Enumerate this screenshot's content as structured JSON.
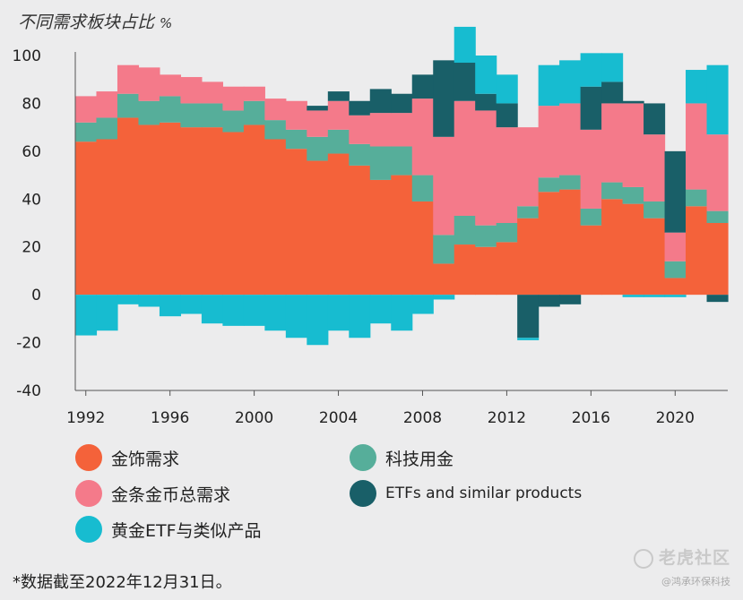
{
  "title": "不同需求板块占比",
  "title_unit": "%",
  "legend": [
    {
      "label": "金饰需求",
      "color": "#f4623a"
    },
    {
      "label": "科技用金",
      "color": "#56ae9a"
    },
    {
      "label": "金条金币总需求",
      "color": "#f47a8a"
    },
    {
      "label": "ETFs and similar products",
      "color": "#195f68"
    },
    {
      "label": "黄金ETF与类似产品",
      "color": "#17bcd0"
    }
  ],
  "footnote": "*数据截至2022年12月31日。",
  "watermark": {
    "main": "老虎社区",
    "sub": "@鸿承环保科技"
  },
  "chart_data": {
    "type": "bar",
    "title": "不同需求板块占比",
    "ylabel": "%",
    "ylim": [
      -40,
      100
    ],
    "yticks": [
      -40,
      -20,
      0,
      20,
      40,
      60,
      80,
      100
    ],
    "xticks": [
      "1992",
      "1996",
      "2000",
      "2004",
      "2008",
      "2012",
      "2016",
      "2020"
    ],
    "categories": [
      "1992",
      "1993",
      "1994",
      "1995",
      "1996",
      "1997",
      "1998",
      "1999",
      "2000",
      "2001",
      "2002",
      "2003",
      "2004",
      "2005",
      "2006",
      "2007",
      "2008",
      "2009",
      "2010",
      "2011",
      "2012",
      "2013",
      "2014",
      "2015",
      "2016",
      "2017",
      "2018",
      "2019",
      "2020",
      "2021",
      "2022"
    ],
    "series": [
      {
        "name": "金饰需求",
        "color": "#f4623a",
        "values": [
          64,
          65,
          74,
          71,
          72,
          70,
          70,
          68,
          71,
          65,
          61,
          56,
          59,
          54,
          48,
          50,
          39,
          13,
          21,
          20,
          22,
          32,
          43,
          44,
          29,
          40,
          38,
          32,
          7,
          37,
          30
        ]
      },
      {
        "name": "科技用金",
        "color": "#56ae9a",
        "values": [
          8,
          9,
          10,
          10,
          11,
          10,
          10,
          9,
          10,
          8,
          8,
          10,
          10,
          9,
          14,
          12,
          11,
          12,
          12,
          9,
          8,
          5,
          6,
          6,
          7,
          7,
          7,
          7,
          7,
          7,
          5
        ]
      },
      {
        "name": "金条金币总需求",
        "color": "#f47a8a",
        "values": [
          11,
          11,
          12,
          14,
          9,
          11,
          9,
          10,
          6,
          9,
          12,
          11,
          12,
          12,
          14,
          14,
          32,
          41,
          48,
          48,
          40,
          33,
          30,
          30,
          33,
          33,
          35,
          28,
          12,
          36,
          32
        ]
      },
      {
        "name": "ETFs and similar products",
        "color": "#195f68",
        "values": [
          0,
          0,
          0,
          0,
          0,
          0,
          0,
          0,
          0,
          0,
          0,
          2,
          4,
          6,
          10,
          8,
          10,
          32,
          16,
          7,
          10,
          -18,
          -5,
          -4,
          18,
          9,
          1,
          13,
          34,
          0,
          -3
        ]
      },
      {
        "name": "黄金ETF与类似产品",
        "color": "#17bcd0",
        "values": [
          -17,
          -15,
          -4,
          -5,
          -9,
          -8,
          -12,
          -13,
          -13,
          -15,
          -18,
          -21,
          -15,
          -18,
          -12,
          -15,
          -8,
          -2,
          15,
          16,
          12,
          -1,
          17,
          18,
          14,
          12,
          -1,
          -1,
          -1,
          14,
          29
        ]
      }
    ],
    "legend_position": "bottom",
    "grid": false
  }
}
